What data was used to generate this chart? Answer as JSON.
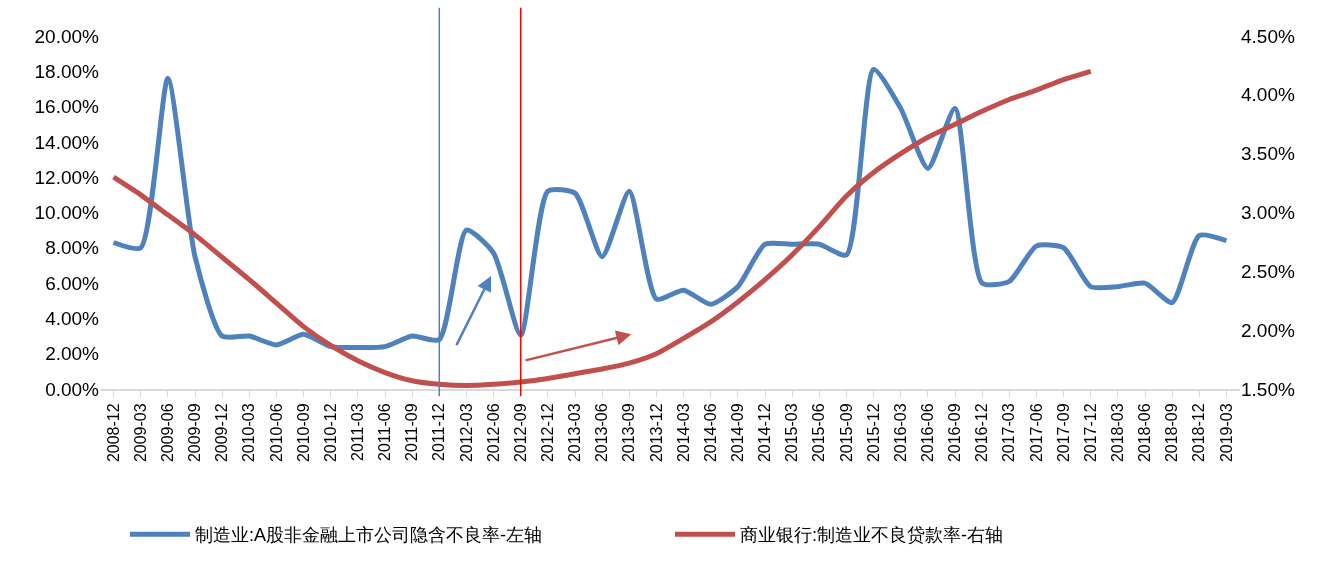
{
  "chart_data": {
    "type": "line",
    "categories": [
      "2008-12",
      "2009-03",
      "2009-06",
      "2009-09",
      "2009-12",
      "2010-03",
      "2010-06",
      "2010-09",
      "2010-12",
      "2011-03",
      "2011-06",
      "2011-09",
      "2011-12",
      "2012-03",
      "2012-06",
      "2012-09",
      "2012-12",
      "2013-03",
      "2013-06",
      "2013-09",
      "2013-12",
      "2014-03",
      "2014-06",
      "2014-09",
      "2014-12",
      "2015-03",
      "2015-06",
      "2015-09",
      "2015-12",
      "2016-03",
      "2016-06",
      "2016-09",
      "2016-12",
      "2017-03",
      "2017-06",
      "2017-09",
      "2017-12",
      "2018-03",
      "2018-06",
      "2018-09",
      "2018-12",
      "2019-03"
    ],
    "series": [
      {
        "name": "制造业:A股非金融上市公司隐含不良率-左轴",
        "color": "#4f81bd",
        "values": [
          8.3,
          8.0,
          17.6,
          7.5,
          3.0,
          3.0,
          2.5,
          3.1,
          2.4,
          2.35,
          2.4,
          3.0,
          2.8,
          9.0,
          7.7,
          3.05,
          11.2,
          11.1,
          7.5,
          11.2,
          5.1,
          5.6,
          4.8,
          5.8,
          8.2,
          8.2,
          8.2,
          7.6,
          18.1,
          15.9,
          12.5,
          15.9,
          6.0,
          6.1,
          8.1,
          8.0,
          5.8,
          5.8,
          6.0,
          4.9,
          8.7,
          8.4
        ]
      },
      {
        "name": "商业银行:制造业不良贷款率-右轴",
        "color": "#c0504d",
        "axis": "y2",
        "values": [
          3.3,
          3.15,
          2.98,
          2.81,
          2.62,
          2.43,
          2.23,
          2.03,
          1.87,
          1.74,
          1.64,
          1.57,
          1.54,
          1.53,
          1.54,
          1.56,
          1.59,
          1.63,
          1.67,
          1.72,
          1.8,
          1.93,
          2.07,
          2.24,
          2.43,
          2.64,
          2.88,
          3.14,
          3.34,
          3.5,
          3.64,
          3.75,
          3.86,
          3.96,
          4.04,
          4.13,
          4.2,
          null,
          null,
          null,
          null,
          null
        ]
      }
    ],
    "ylim": [
      0,
      20
    ],
    "yticks": [
      {
        "value": 0,
        "label": "0.00%"
      },
      {
        "value": 2,
        "label": "2.00%"
      },
      {
        "value": 4,
        "label": "4.00%"
      },
      {
        "value": 6,
        "label": "6.00%"
      },
      {
        "value": 8,
        "label": "8.00%"
      },
      {
        "value": 10,
        "label": "10.00%"
      },
      {
        "value": 12,
        "label": "12.00%"
      },
      {
        "value": 14,
        "label": "14.00%"
      },
      {
        "value": 16,
        "label": "16.00%"
      },
      {
        "value": 18,
        "label": "18.00%"
      },
      {
        "value": 20,
        "label": "20.00%"
      }
    ],
    "y2lim": [
      1.5,
      4.5
    ],
    "y2ticks": [
      {
        "value": 1.5,
        "label": "1.50%"
      },
      {
        "value": 2,
        "label": "2.00%"
      },
      {
        "value": 2.5,
        "label": "2.50%"
      },
      {
        "value": 3,
        "label": "3.00%"
      },
      {
        "value": 3.5,
        "label": "3.50%"
      },
      {
        "value": 4,
        "label": "4.00%"
      },
      {
        "value": 4.5,
        "label": "4.50%"
      }
    ],
    "ref_lines": [
      {
        "axis": "x",
        "value": "2011-12",
        "color": "#4f81bd"
      },
      {
        "axis": "x",
        "value": "2012-09",
        "color": "#ff0000"
      }
    ],
    "legend": "bottom",
    "marker": "none",
    "line_style": "solid"
  }
}
